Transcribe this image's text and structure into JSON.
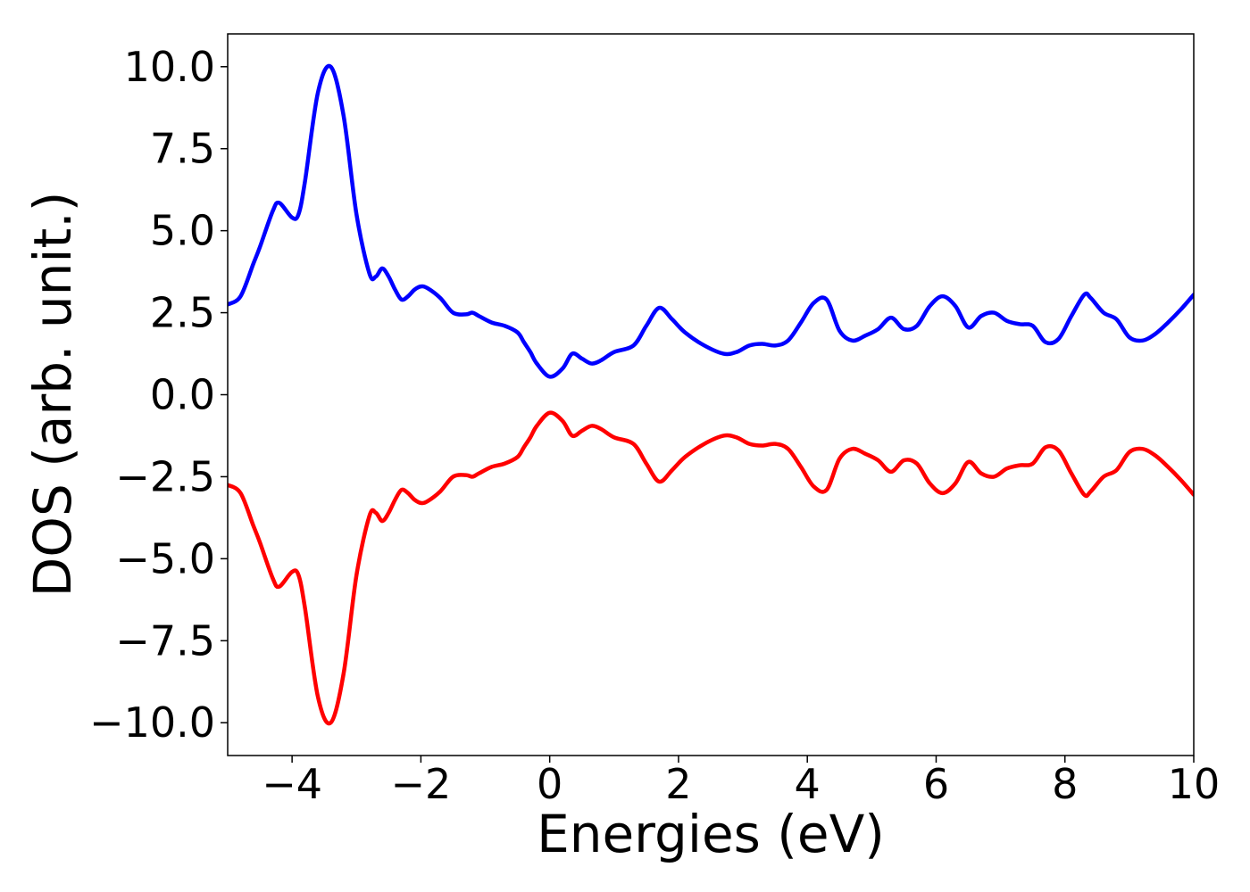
{
  "chart_data": {
    "type": "line",
    "xlabel": "Energies (eV)",
    "ylabel": "DOS (arb. unit.)",
    "xlim": [
      -5,
      10
    ],
    "ylim": [
      -11,
      11
    ],
    "grid": false,
    "x_ticks": [
      -4,
      -2,
      0,
      2,
      4,
      6,
      8,
      10
    ],
    "x_tick_labels": [
      "−4",
      "−2",
      "0",
      "2",
      "4",
      "6",
      "8",
      "10"
    ],
    "y_ticks": [
      10,
      7.5,
      5,
      2.5,
      0,
      -2.5,
      -5,
      -7.5,
      -10
    ],
    "y_tick_labels": [
      "10.0",
      "7.5",
      "5.0",
      "2.5",
      "0.0",
      "−2.5",
      "−5.0",
      "−7.5",
      "−10.0"
    ],
    "series": [
      {
        "color": "#0000ff",
        "x": [
          -5.0,
          -4.8,
          -4.6,
          -4.5,
          -4.3,
          -4.2,
          -4.0,
          -3.9,
          -3.8,
          -3.6,
          -3.4,
          -3.2,
          -3.0,
          -2.8,
          -2.7,
          -2.6,
          -2.5,
          -2.4,
          -2.3,
          -2.2,
          -2.1,
          -2.0,
          -1.9,
          -1.7,
          -1.5,
          -1.3,
          -1.2,
          -1.1,
          -0.9,
          -0.7,
          -0.5,
          -0.4,
          -0.3,
          -0.2,
          0.0,
          0.2,
          0.35,
          0.5,
          0.65,
          0.8,
          1.0,
          1.3,
          1.5,
          1.7,
          1.9,
          2.1,
          2.4,
          2.7,
          2.9,
          3.1,
          3.3,
          3.5,
          3.7,
          3.9,
          4.1,
          4.3,
          4.5,
          4.7,
          4.9,
          5.1,
          5.3,
          5.5,
          5.7,
          5.9,
          6.1,
          6.3,
          6.5,
          6.7,
          6.9,
          7.1,
          7.3,
          7.5,
          7.7,
          7.9,
          8.1,
          8.3,
          8.4,
          8.6,
          8.8,
          9.0,
          9.2,
          9.4,
          9.6,
          9.8,
          10.0
        ],
        "y": [
          2.75,
          3.0,
          4.0,
          4.5,
          5.6,
          5.85,
          5.4,
          5.5,
          6.5,
          9.2,
          10.0,
          8.5,
          5.5,
          3.7,
          3.6,
          3.85,
          3.6,
          3.2,
          2.9,
          3.0,
          3.2,
          3.3,
          3.25,
          2.95,
          2.5,
          2.45,
          2.5,
          2.4,
          2.2,
          2.1,
          1.9,
          1.6,
          1.3,
          0.95,
          0.55,
          0.8,
          1.25,
          1.1,
          0.95,
          1.05,
          1.3,
          1.5,
          2.1,
          2.65,
          2.3,
          1.9,
          1.5,
          1.25,
          1.3,
          1.5,
          1.55,
          1.5,
          1.65,
          2.2,
          2.8,
          2.9,
          1.95,
          1.65,
          1.8,
          2.0,
          2.35,
          2.0,
          2.1,
          2.7,
          3.0,
          2.7,
          2.05,
          2.4,
          2.5,
          2.25,
          2.15,
          2.1,
          1.6,
          1.7,
          2.4,
          3.05,
          2.95,
          2.5,
          2.3,
          1.75,
          1.65,
          1.85,
          2.2,
          2.6,
          3.05
        ]
      },
      {
        "color": "#ff0000",
        "x": [
          -5.0,
          -4.8,
          -4.6,
          -4.5,
          -4.3,
          -4.2,
          -4.0,
          -3.9,
          -3.8,
          -3.6,
          -3.4,
          -3.2,
          -3.0,
          -2.8,
          -2.7,
          -2.6,
          -2.5,
          -2.4,
          -2.3,
          -2.2,
          -2.1,
          -2.0,
          -1.9,
          -1.7,
          -1.5,
          -1.3,
          -1.2,
          -1.1,
          -0.9,
          -0.7,
          -0.5,
          -0.4,
          -0.3,
          -0.2,
          0.0,
          0.2,
          0.35,
          0.5,
          0.65,
          0.8,
          1.0,
          1.3,
          1.5,
          1.7,
          1.9,
          2.1,
          2.4,
          2.7,
          2.9,
          3.1,
          3.3,
          3.5,
          3.7,
          3.9,
          4.1,
          4.3,
          4.5,
          4.7,
          4.9,
          5.1,
          5.3,
          5.5,
          5.7,
          5.9,
          6.1,
          6.3,
          6.5,
          6.7,
          6.9,
          7.1,
          7.3,
          7.5,
          7.7,
          7.9,
          8.1,
          8.3,
          8.4,
          8.6,
          8.8,
          9.0,
          9.2,
          9.4,
          9.6,
          9.8,
          10.0
        ],
        "y": [
          -2.75,
          -3.0,
          -4.0,
          -4.5,
          -5.6,
          -5.85,
          -5.4,
          -5.5,
          -6.5,
          -9.2,
          -10.0,
          -8.5,
          -5.5,
          -3.7,
          -3.6,
          -3.85,
          -3.6,
          -3.2,
          -2.9,
          -3.0,
          -3.2,
          -3.3,
          -3.25,
          -2.95,
          -2.5,
          -2.45,
          -2.5,
          -2.4,
          -2.2,
          -2.1,
          -1.9,
          -1.6,
          -1.3,
          -0.95,
          -0.55,
          -0.8,
          -1.25,
          -1.1,
          -0.95,
          -1.05,
          -1.3,
          -1.5,
          -2.1,
          -2.65,
          -2.3,
          -1.9,
          -1.5,
          -1.25,
          -1.3,
          -1.5,
          -1.55,
          -1.5,
          -1.65,
          -2.2,
          -2.8,
          -2.9,
          -1.95,
          -1.65,
          -1.8,
          -2.0,
          -2.35,
          -2.0,
          -2.1,
          -2.7,
          -3.0,
          -2.7,
          -2.05,
          -2.4,
          -2.5,
          -2.25,
          -2.15,
          -2.1,
          -1.6,
          -1.7,
          -2.4,
          -3.05,
          -2.95,
          -2.5,
          -2.3,
          -1.75,
          -1.65,
          -1.85,
          -2.2,
          -2.6,
          -3.05
        ]
      }
    ]
  }
}
